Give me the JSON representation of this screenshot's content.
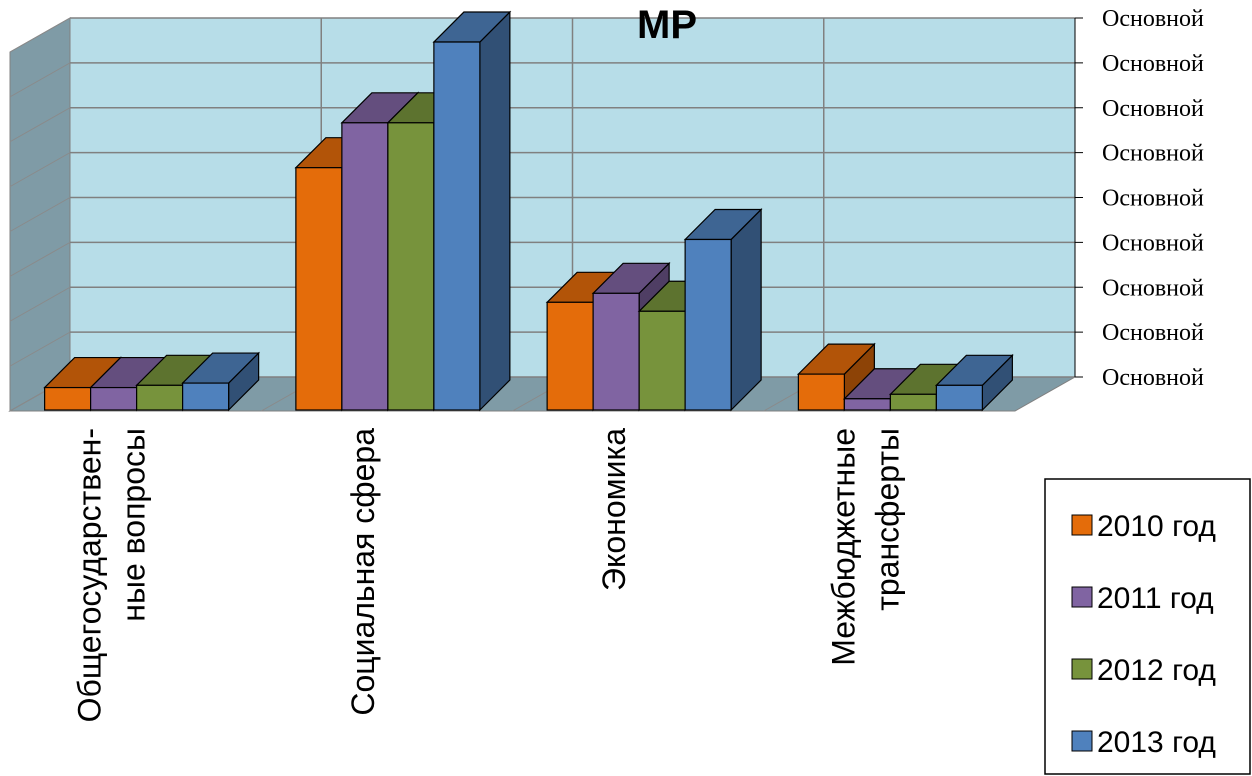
{
  "chart_data": {
    "type": "bar",
    "title": "МР",
    "categories": [
      [
        "Общегосударствен-",
        "ные вопросы"
      ],
      [
        "Социальная сфера"
      ],
      [
        "Экономика"
      ],
      [
        "Межбюджетные",
        "трансферты"
      ]
    ],
    "series": [
      {
        "name": "2010 год",
        "color": "#E46C0A",
        "values": [
          0.5,
          5.4,
          2.4,
          0.8
        ]
      },
      {
        "name": "2011 год",
        "color": "#8064A2",
        "values": [
          0.5,
          6.4,
          2.6,
          0.25
        ]
      },
      {
        "name": "2012 год",
        "color": "#77933C",
        "values": [
          0.55,
          6.4,
          2.2,
          0.35
        ]
      },
      {
        "name": "2013 год",
        "color": "#4F81BD",
        "values": [
          0.6,
          8.2,
          3.8,
          0.55
        ]
      }
    ],
    "y_tick_labels": [
      "Основной",
      "Основной",
      "Основной",
      "Основной",
      "Основной",
      "Основной",
      "Основной",
      "Основной",
      "Основной"
    ],
    "ylim": [
      0,
      8
    ],
    "grid": true,
    "legend_position": "bottom-right",
    "wall_color": "#B7DDE8",
    "floor_color": "#7F9BA6"
  }
}
